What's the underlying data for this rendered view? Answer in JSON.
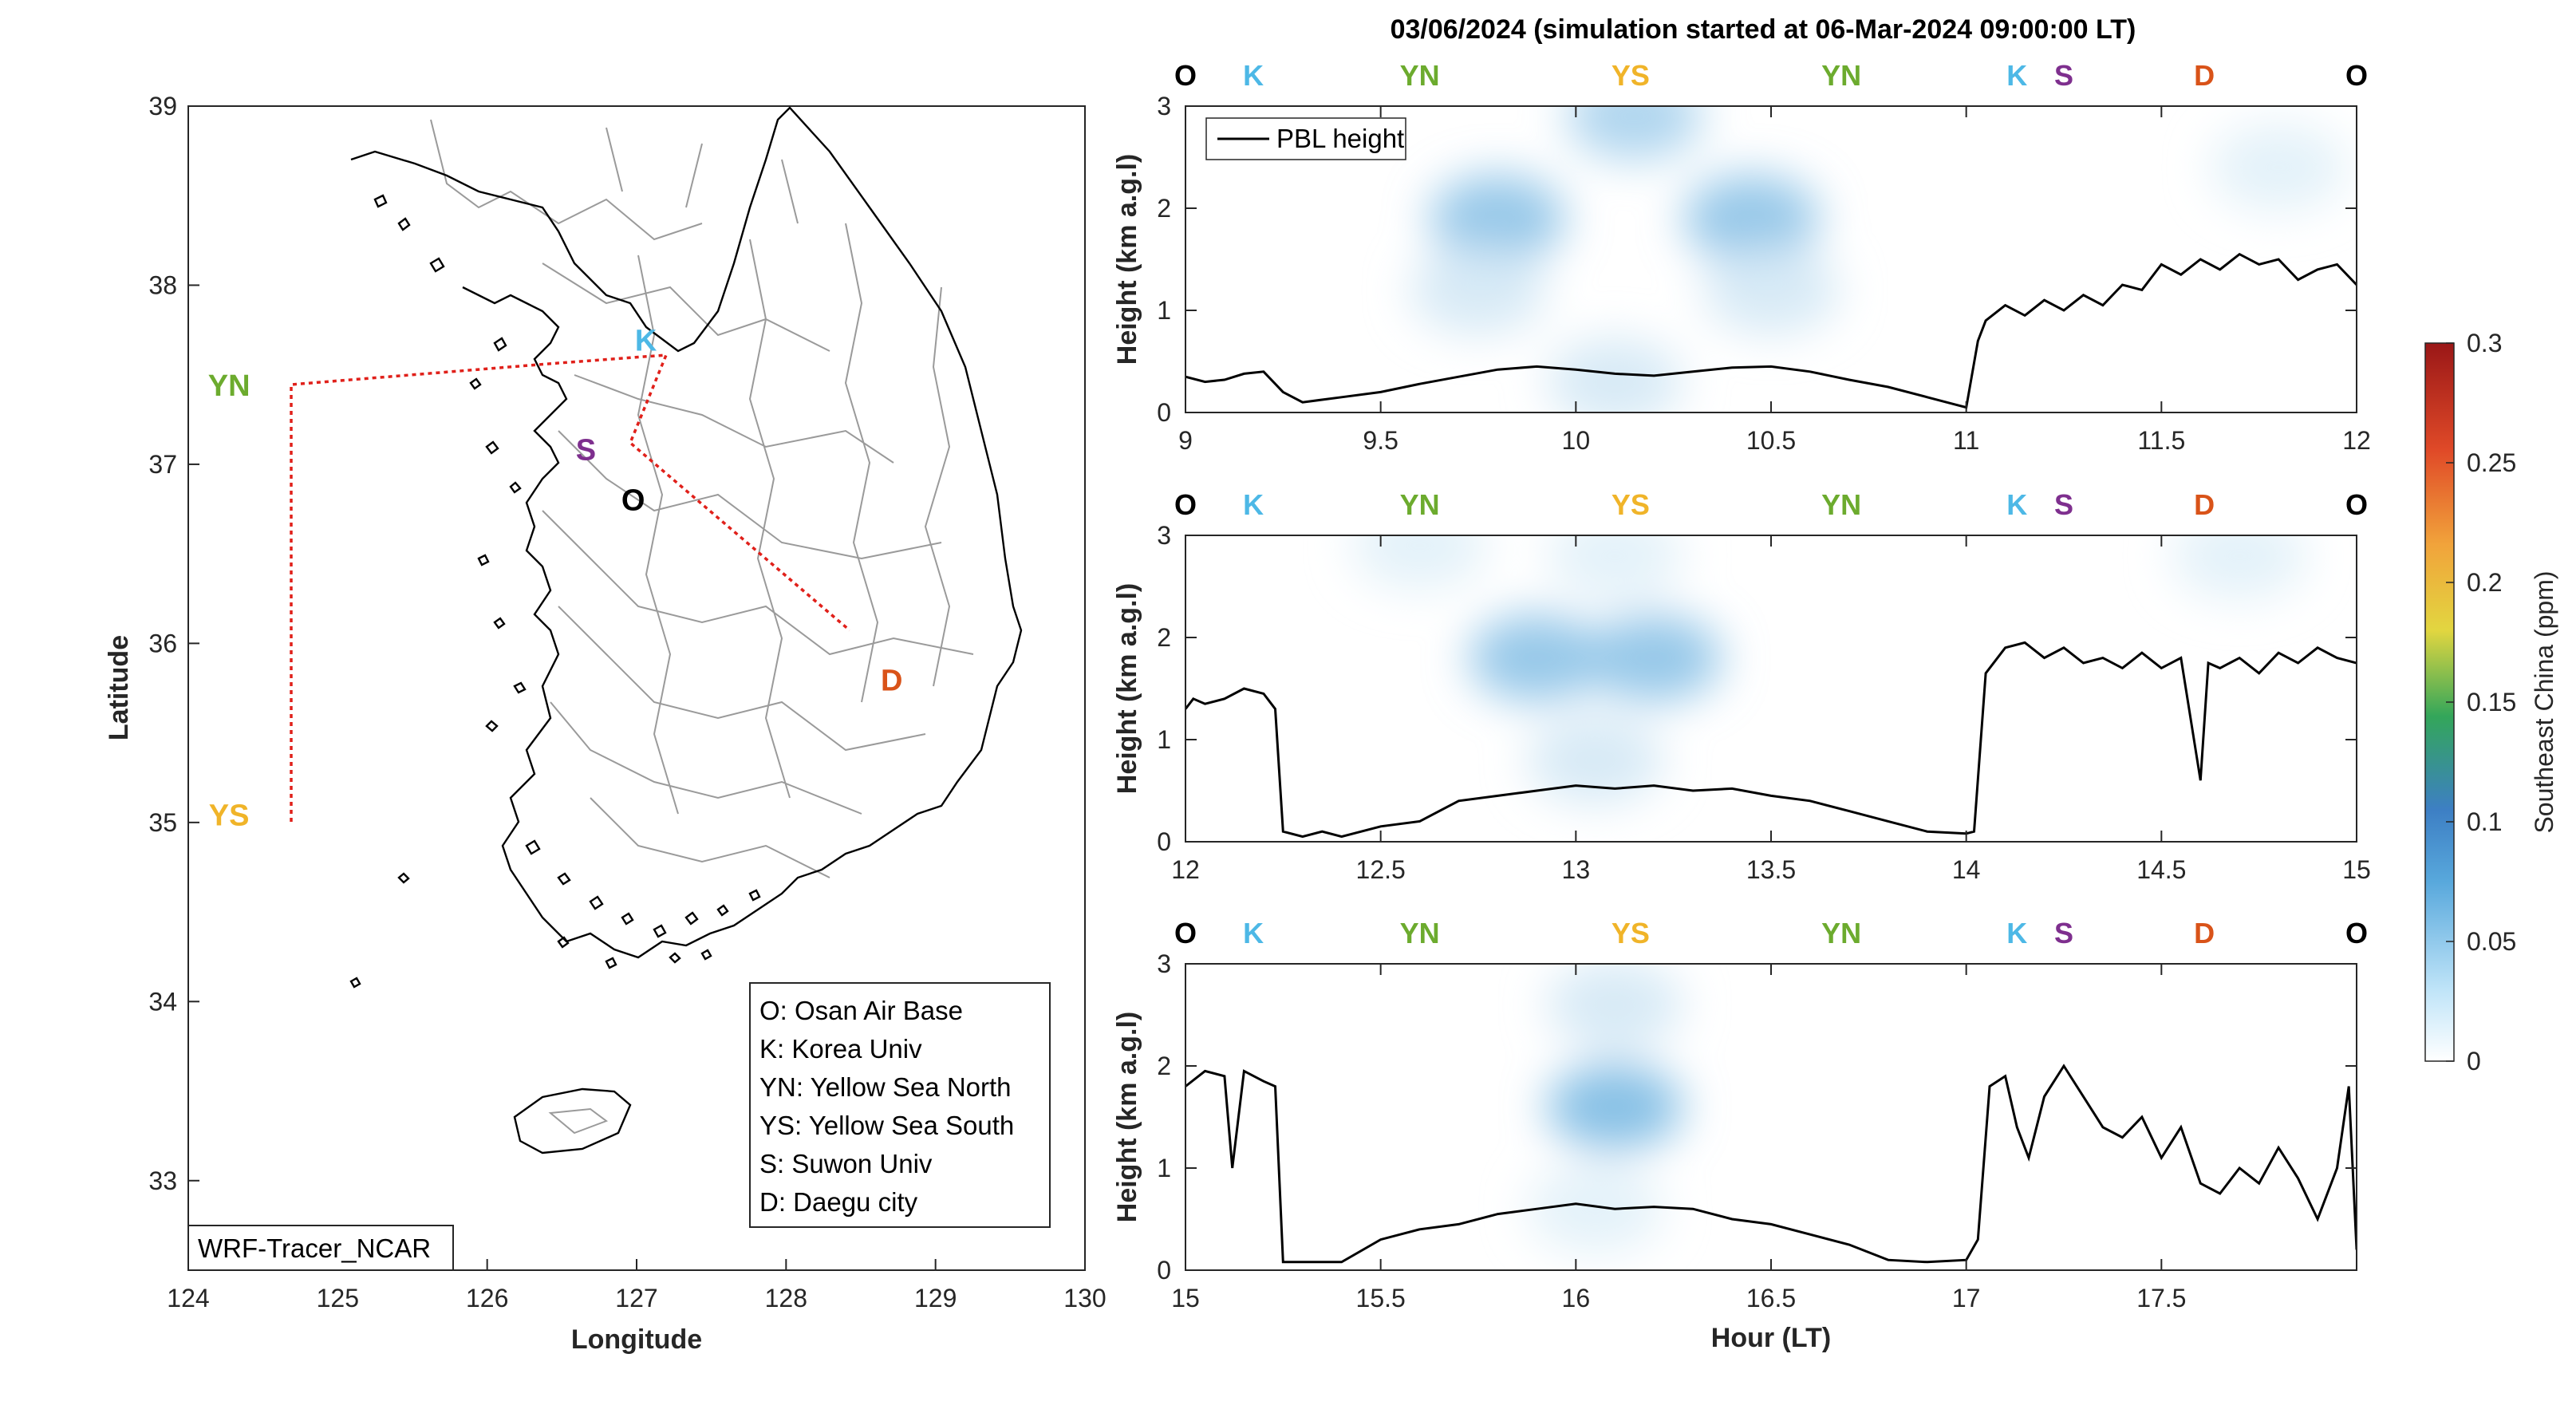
{
  "figure_title": "03/06/2024 (simulation started at 06-Mar-2024 09:00:00 LT)",
  "colors": {
    "O": "#000000",
    "K": "#4db8e6",
    "YN": "#6cab2e",
    "YS": "#f0b429",
    "S": "#7e2f8e",
    "D": "#d95319",
    "route": "#e0201a"
  },
  "map": {
    "xlabel": "Longitude",
    "ylabel": "Latitude",
    "xticks": [
      "124",
      "125",
      "126",
      "127",
      "128",
      "129",
      "130"
    ],
    "yticks": [
      "39",
      "38",
      "37",
      "36",
      "35",
      "34",
      "33"
    ],
    "xlim": [
      124,
      130
    ],
    "ylim": [
      32.5,
      39
    ],
    "model_label": "WRF-Tracer_NCAR",
    "sites": [
      {
        "code": "O",
        "lon": 127.03,
        "lat": 37.09
      },
      {
        "code": "K",
        "lon": 127.03,
        "lat": 37.59
      },
      {
        "code": "S",
        "lon": 126.97,
        "lat": 37.27
      },
      {
        "code": "D",
        "lon": 128.6,
        "lat": 35.87
      },
      {
        "code": "YN",
        "lon": 124.7,
        "lat": 37.45
      },
      {
        "code": "YS",
        "lon": 124.7,
        "lat": 35.05
      }
    ],
    "legend": [
      "O: Osan Air Base",
      "K: Korea Univ",
      "YN: Yellow Sea North",
      "YS: Yellow Sea South",
      "S: Suwon Univ",
      "D: Daegu city"
    ]
  },
  "chart_data": [
    {
      "type": "line",
      "title": "",
      "xlabel": "",
      "ylabel": "Height (km a.g.l)",
      "xlim": [
        9,
        12
      ],
      "ylim": [
        0,
        3
      ],
      "xticks": [
        "9",
        "9.5",
        "10",
        "10.5",
        "11",
        "11.5",
        "12"
      ],
      "yticks": [
        "0",
        "1",
        "2",
        "3"
      ],
      "site_sequence": [
        "O",
        "K",
        "YN",
        "YS",
        "YN",
        "K",
        "S",
        "D",
        "O"
      ],
      "legend": "PBL height",
      "series": [
        {
          "name": "PBL height",
          "x": [
            9.0,
            9.05,
            9.1,
            9.15,
            9.2,
            9.25,
            9.3,
            9.4,
            9.5,
            9.6,
            9.7,
            9.8,
            9.9,
            10.0,
            10.1,
            10.2,
            10.3,
            10.4,
            10.5,
            10.6,
            10.7,
            10.8,
            10.9,
            10.97,
            11.0,
            11.03,
            11.05,
            11.1,
            11.15,
            11.2,
            11.25,
            11.3,
            11.35,
            11.4,
            11.45,
            11.5,
            11.55,
            11.6,
            11.65,
            11.7,
            11.75,
            11.8,
            11.85,
            11.9,
            11.95,
            12.0
          ],
          "y": [
            0.35,
            0.3,
            0.32,
            0.38,
            0.4,
            0.2,
            0.1,
            0.15,
            0.2,
            0.28,
            0.35,
            0.42,
            0.45,
            0.42,
            0.38,
            0.36,
            0.4,
            0.44,
            0.45,
            0.4,
            0.32,
            0.25,
            0.15,
            0.08,
            0.05,
            0.7,
            0.9,
            1.05,
            0.95,
            1.1,
            1.0,
            1.15,
            1.05,
            1.25,
            1.2,
            1.45,
            1.35,
            1.5,
            1.4,
            1.55,
            1.45,
            1.5,
            1.3,
            1.4,
            1.45,
            1.25
          ]
        }
      ],
      "tracer_blobs": [
        {
          "x": 9.8,
          "y": 1.9,
          "ppm": 0.04
        },
        {
          "x": 10.45,
          "y": 1.9,
          "ppm": 0.04
        },
        {
          "x": 10.15,
          "y": 2.9,
          "ppm": 0.03
        },
        {
          "x": 9.75,
          "y": 1.2,
          "ppm": 0.015
        },
        {
          "x": 10.5,
          "y": 1.2,
          "ppm": 0.015
        },
        {
          "x": 10.1,
          "y": 0.3,
          "ppm": 0.015
        },
        {
          "x": 11.8,
          "y": 2.4,
          "ppm": 0.01
        }
      ]
    },
    {
      "type": "line",
      "title": "",
      "xlabel": "",
      "ylabel": "Height (km a.g.l)",
      "xlim": [
        12,
        15
      ],
      "ylim": [
        0,
        3
      ],
      "xticks": [
        "12",
        "12.5",
        "13",
        "13.5",
        "14",
        "14.5",
        "15"
      ],
      "yticks": [
        "0",
        "1",
        "2",
        "3"
      ],
      "site_sequence": [
        "O",
        "K",
        "YN",
        "YS",
        "YN",
        "K",
        "S",
        "D",
        "O"
      ],
      "series": [
        {
          "name": "PBL height",
          "x": [
            12.0,
            12.02,
            12.05,
            12.1,
            12.15,
            12.2,
            12.23,
            12.25,
            12.3,
            12.35,
            12.4,
            12.5,
            12.6,
            12.7,
            12.8,
            12.9,
            13.0,
            13.1,
            13.2,
            13.3,
            13.4,
            13.5,
            13.6,
            13.7,
            13.8,
            13.9,
            14.0,
            14.02,
            14.05,
            14.1,
            14.15,
            14.2,
            14.25,
            14.3,
            14.35,
            14.4,
            14.45,
            14.5,
            14.55,
            14.6,
            14.62,
            14.65,
            14.7,
            14.75,
            14.8,
            14.85,
            14.9,
            14.95,
            15.0
          ],
          "y": [
            1.3,
            1.4,
            1.35,
            1.4,
            1.5,
            1.45,
            1.3,
            0.1,
            0.05,
            0.1,
            0.05,
            0.15,
            0.2,
            0.4,
            0.45,
            0.5,
            0.55,
            0.52,
            0.55,
            0.5,
            0.52,
            0.45,
            0.4,
            0.3,
            0.2,
            0.1,
            0.08,
            0.1,
            1.65,
            1.9,
            1.95,
            1.8,
            1.9,
            1.75,
            1.8,
            1.7,
            1.85,
            1.7,
            1.8,
            0.6,
            1.75,
            1.7,
            1.8,
            1.65,
            1.85,
            1.75,
            1.9,
            1.8,
            1.75
          ]
        }
      ],
      "tracer_blobs": [
        {
          "x": 12.9,
          "y": 1.8,
          "ppm": 0.04
        },
        {
          "x": 13.2,
          "y": 1.8,
          "ppm": 0.04
        },
        {
          "x": 13.05,
          "y": 0.8,
          "ppm": 0.015
        },
        {
          "x": 13.1,
          "y": 2.8,
          "ppm": 0.01
        },
        {
          "x": 12.6,
          "y": 2.9,
          "ppm": 0.01
        },
        {
          "x": 14.7,
          "y": 2.8,
          "ppm": 0.01
        }
      ]
    },
    {
      "type": "line",
      "title": "",
      "xlabel": "Hour (LT)",
      "ylabel": "Height (km a.g.l)",
      "xlim": [
        15,
        18
      ],
      "ylim": [
        0,
        3
      ],
      "xticks": [
        "15",
        "15.5",
        "16",
        "16.5",
        "17",
        "17.5"
      ],
      "yticks": [
        "0",
        "1",
        "2",
        "3"
      ],
      "site_sequence": [
        "O",
        "K",
        "YN",
        "YS",
        "YN",
        "K",
        "S",
        "D",
        "O"
      ],
      "series": [
        {
          "name": "PBL height",
          "x": [
            15.0,
            15.05,
            15.1,
            15.12,
            15.15,
            15.2,
            15.23,
            15.25,
            15.3,
            15.4,
            15.5,
            15.6,
            15.7,
            15.8,
            15.9,
            16.0,
            16.1,
            16.2,
            16.3,
            16.4,
            16.5,
            16.6,
            16.7,
            16.8,
            16.9,
            17.0,
            17.03,
            17.06,
            17.1,
            17.13,
            17.16,
            17.2,
            17.25,
            17.3,
            17.35,
            17.4,
            17.45,
            17.5,
            17.55,
            17.6,
            17.65,
            17.7,
            17.75,
            17.8,
            17.85,
            17.9,
            17.95,
            17.98,
            18.0
          ],
          "y": [
            1.8,
            1.95,
            1.9,
            1.0,
            1.95,
            1.85,
            1.8,
            0.08,
            0.08,
            0.08,
            0.3,
            0.4,
            0.45,
            0.55,
            0.6,
            0.65,
            0.6,
            0.62,
            0.6,
            0.5,
            0.45,
            0.35,
            0.25,
            0.1,
            0.08,
            0.1,
            0.3,
            1.8,
            1.9,
            1.4,
            1.1,
            1.7,
            2.0,
            1.7,
            1.4,
            1.3,
            1.5,
            1.1,
            1.4,
            0.85,
            0.75,
            1.0,
            0.85,
            1.2,
            0.9,
            0.5,
            1.0,
            1.8,
            0.2
          ]
        }
      ],
      "tracer_blobs": [
        {
          "x": 16.1,
          "y": 1.6,
          "ppm": 0.045
        },
        {
          "x": 16.1,
          "y": 2.6,
          "ppm": 0.015
        },
        {
          "x": 16.05,
          "y": 0.6,
          "ppm": 0.01
        }
      ]
    }
  ],
  "colorbar": {
    "label": "Southeast China (ppm)",
    "ticks": [
      "0",
      "0.05",
      "0.1",
      "0.15",
      "0.2",
      "0.25",
      "0.3"
    ],
    "range": [
      0,
      0.3
    ]
  }
}
